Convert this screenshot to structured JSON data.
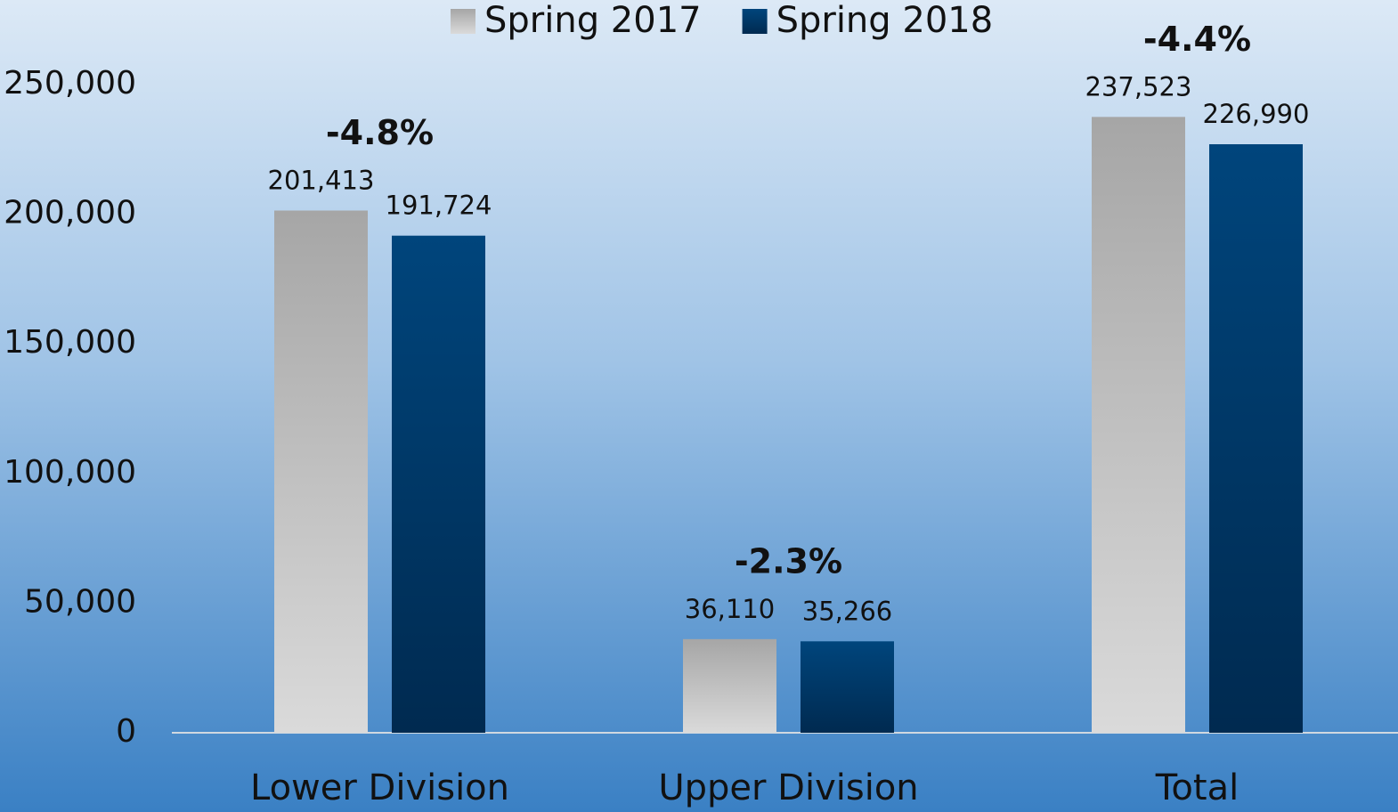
{
  "chart_data": {
    "type": "bar",
    "categories": [
      "Lower Division",
      "Upper Division",
      "Total"
    ],
    "series": [
      {
        "name": "Spring 2017",
        "color": "#a6a6a6",
        "color_end": "#dadada",
        "values": [
          201413,
          36110,
          237523
        ],
        "value_labels": [
          "201,413",
          "36,110",
          "237,523"
        ]
      },
      {
        "name": "Spring 2018",
        "color": "#00457c",
        "color_end": "#002a50",
        "values": [
          191724,
          35266,
          226990
        ],
        "value_labels": [
          "191,724",
          "35,266",
          "226,990"
        ]
      }
    ],
    "change_labels": [
      "-4.8%",
      "-2.3%",
      "-4.4%"
    ],
    "ylim": [
      0,
      250000
    ],
    "yticks": [
      0,
      {
        "value": 50000,
        "label": "50,000"
      },
      {
        "value": 100000,
        "label": "100,000"
      },
      {
        "value": 150000,
        "label": "150,000"
      },
      {
        "value": 200000,
        "label": "200,000"
      },
      {
        "value": 250000,
        "label": "250,000"
      }
    ],
    "grid": false,
    "legend": "top"
  }
}
